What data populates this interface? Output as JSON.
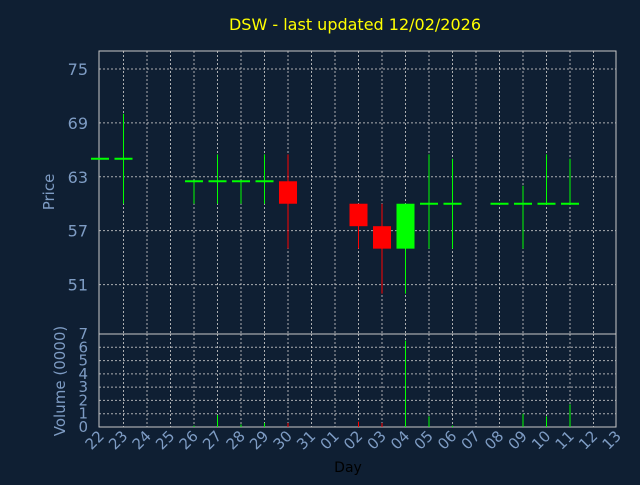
{
  "chart_data": {
    "type": "candlestick",
    "title": "DSW - last updated 12/02/2026",
    "xlabel": "Day",
    "price_panel": {
      "ylabel": "Price",
      "yticks": [
        51,
        57,
        63,
        69,
        75
      ],
      "ylim": [
        45.5,
        77
      ]
    },
    "volume_panel": {
      "ylabel": "Volume (0000)",
      "yticks": [
        0,
        1,
        2,
        3,
        4,
        5,
        6,
        7
      ],
      "ylim": [
        0,
        7
      ]
    },
    "x_tick_labels": [
      "22",
      "23",
      "24",
      "25",
      "26",
      "27",
      "28",
      "29",
      "30",
      "31",
      "01",
      "02",
      "03",
      "04",
      "05",
      "06",
      "07",
      "08",
      "09",
      "10",
      "11",
      "12",
      "13"
    ],
    "candles": [
      {
        "x": 0,
        "open": 65.0,
        "close": 65.0,
        "high": 65.0,
        "low": 65.0,
        "volume": 0.0
      },
      {
        "x": 1,
        "open": 65.0,
        "close": 65.0,
        "high": 70.0,
        "low": 60.0,
        "volume": 0.0
      },
      {
        "x": 4,
        "open": 62.5,
        "close": 62.5,
        "high": 62.5,
        "low": 60.0,
        "volume": 0.1
      },
      {
        "x": 5,
        "open": 62.5,
        "close": 62.5,
        "high": 65.5,
        "low": 60.0,
        "volume": 0.9
      },
      {
        "x": 6,
        "open": 62.5,
        "close": 62.5,
        "high": 62.5,
        "low": 60.0,
        "volume": 0.2
      },
      {
        "x": 7,
        "open": 62.5,
        "close": 62.5,
        "high": 65.5,
        "low": 60.0,
        "volume": 0.3
      },
      {
        "x": 8,
        "open": 62.5,
        "close": 60.0,
        "high": 65.5,
        "low": 55.0,
        "volume": 0.3
      },
      {
        "x": 11,
        "open": 60.0,
        "close": 57.5,
        "high": 60.0,
        "low": 55.0,
        "volume": 0.4
      },
      {
        "x": 12,
        "open": 57.5,
        "close": 55.0,
        "high": 60.0,
        "low": 50.0,
        "volume": 0.3
      },
      {
        "x": 13,
        "open": 55.0,
        "close": 60.0,
        "high": 60.0,
        "low": 50.0,
        "volume": 6.5
      },
      {
        "x": 14,
        "open": 60.0,
        "close": 60.0,
        "high": 65.5,
        "low": 55.0,
        "volume": 0.8
      },
      {
        "x": 15,
        "open": 60.0,
        "close": 60.0,
        "high": 65.0,
        "low": 55.0,
        "volume": 0.1
      },
      {
        "x": 17,
        "open": 60.0,
        "close": 60.0,
        "high": 60.0,
        "low": 60.0,
        "volume": 0.0
      },
      {
        "x": 18,
        "open": 60.0,
        "close": 60.0,
        "high": 62.0,
        "low": 55.0,
        "volume": 1.0
      },
      {
        "x": 19,
        "open": 60.0,
        "close": 60.0,
        "high": 65.5,
        "low": 60.0,
        "volume": 0.8
      },
      {
        "x": 20,
        "open": 60.0,
        "close": 60.0,
        "high": 65.0,
        "low": 60.0,
        "volume": 1.7
      }
    ],
    "grid": true,
    "colors": {
      "background": "#0f1f33",
      "panel": "#0f1f33",
      "frame": "#c8c8c8",
      "grid": "#c8c8c8",
      "title": "#ffff00",
      "axis_label": "#7e9cc4",
      "up": "#00ff00",
      "down": "#ff0000",
      "flat": "#00ff00"
    }
  }
}
